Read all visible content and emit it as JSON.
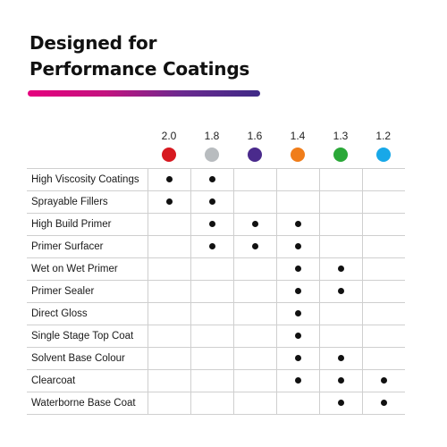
{
  "title": {
    "line1": "Designed for",
    "line2": "Performance Coatings"
  },
  "accent_gradient": [
    "#e6007e",
    "#c3137f",
    "#6a2a8f",
    "#3f2a87"
  ],
  "nozzles": [
    {
      "size": "2.0",
      "color": "#d71920"
    },
    {
      "size": "1.8",
      "color": "#b8bcbf"
    },
    {
      "size": "1.6",
      "color": "#4a2a8c"
    },
    {
      "size": "1.4",
      "color": "#f07d1a"
    },
    {
      "size": "1.3",
      "color": "#2aa838"
    },
    {
      "size": "1.2",
      "color": "#18a8e8"
    }
  ],
  "rows": [
    {
      "label": "High Viscosity Coatings",
      "marks": [
        true,
        true,
        false,
        false,
        false,
        false
      ]
    },
    {
      "label": "Sprayable Fillers",
      "marks": [
        true,
        true,
        false,
        false,
        false,
        false
      ]
    },
    {
      "label": "High Build Primer",
      "marks": [
        false,
        true,
        true,
        true,
        false,
        false
      ]
    },
    {
      "label": "Primer Surfacer",
      "marks": [
        false,
        true,
        true,
        true,
        false,
        false
      ]
    },
    {
      "label": "Wet on Wet Primer",
      "marks": [
        false,
        false,
        false,
        true,
        true,
        false
      ]
    },
    {
      "label": "Primer Sealer",
      "marks": [
        false,
        false,
        false,
        true,
        true,
        false
      ]
    },
    {
      "label": "Direct Gloss",
      "marks": [
        false,
        false,
        false,
        true,
        false,
        false
      ]
    },
    {
      "label": "Single Stage Top Coat",
      "marks": [
        false,
        false,
        false,
        true,
        false,
        false
      ]
    },
    {
      "label": "Solvent Base Colour",
      "marks": [
        false,
        false,
        false,
        true,
        true,
        false
      ]
    },
    {
      "label": "Clearcoat",
      "marks": [
        false,
        false,
        false,
        true,
        true,
        true
      ]
    },
    {
      "label": "Waterborne Base Coat",
      "marks": [
        false,
        false,
        false,
        false,
        true,
        true
      ]
    }
  ]
}
